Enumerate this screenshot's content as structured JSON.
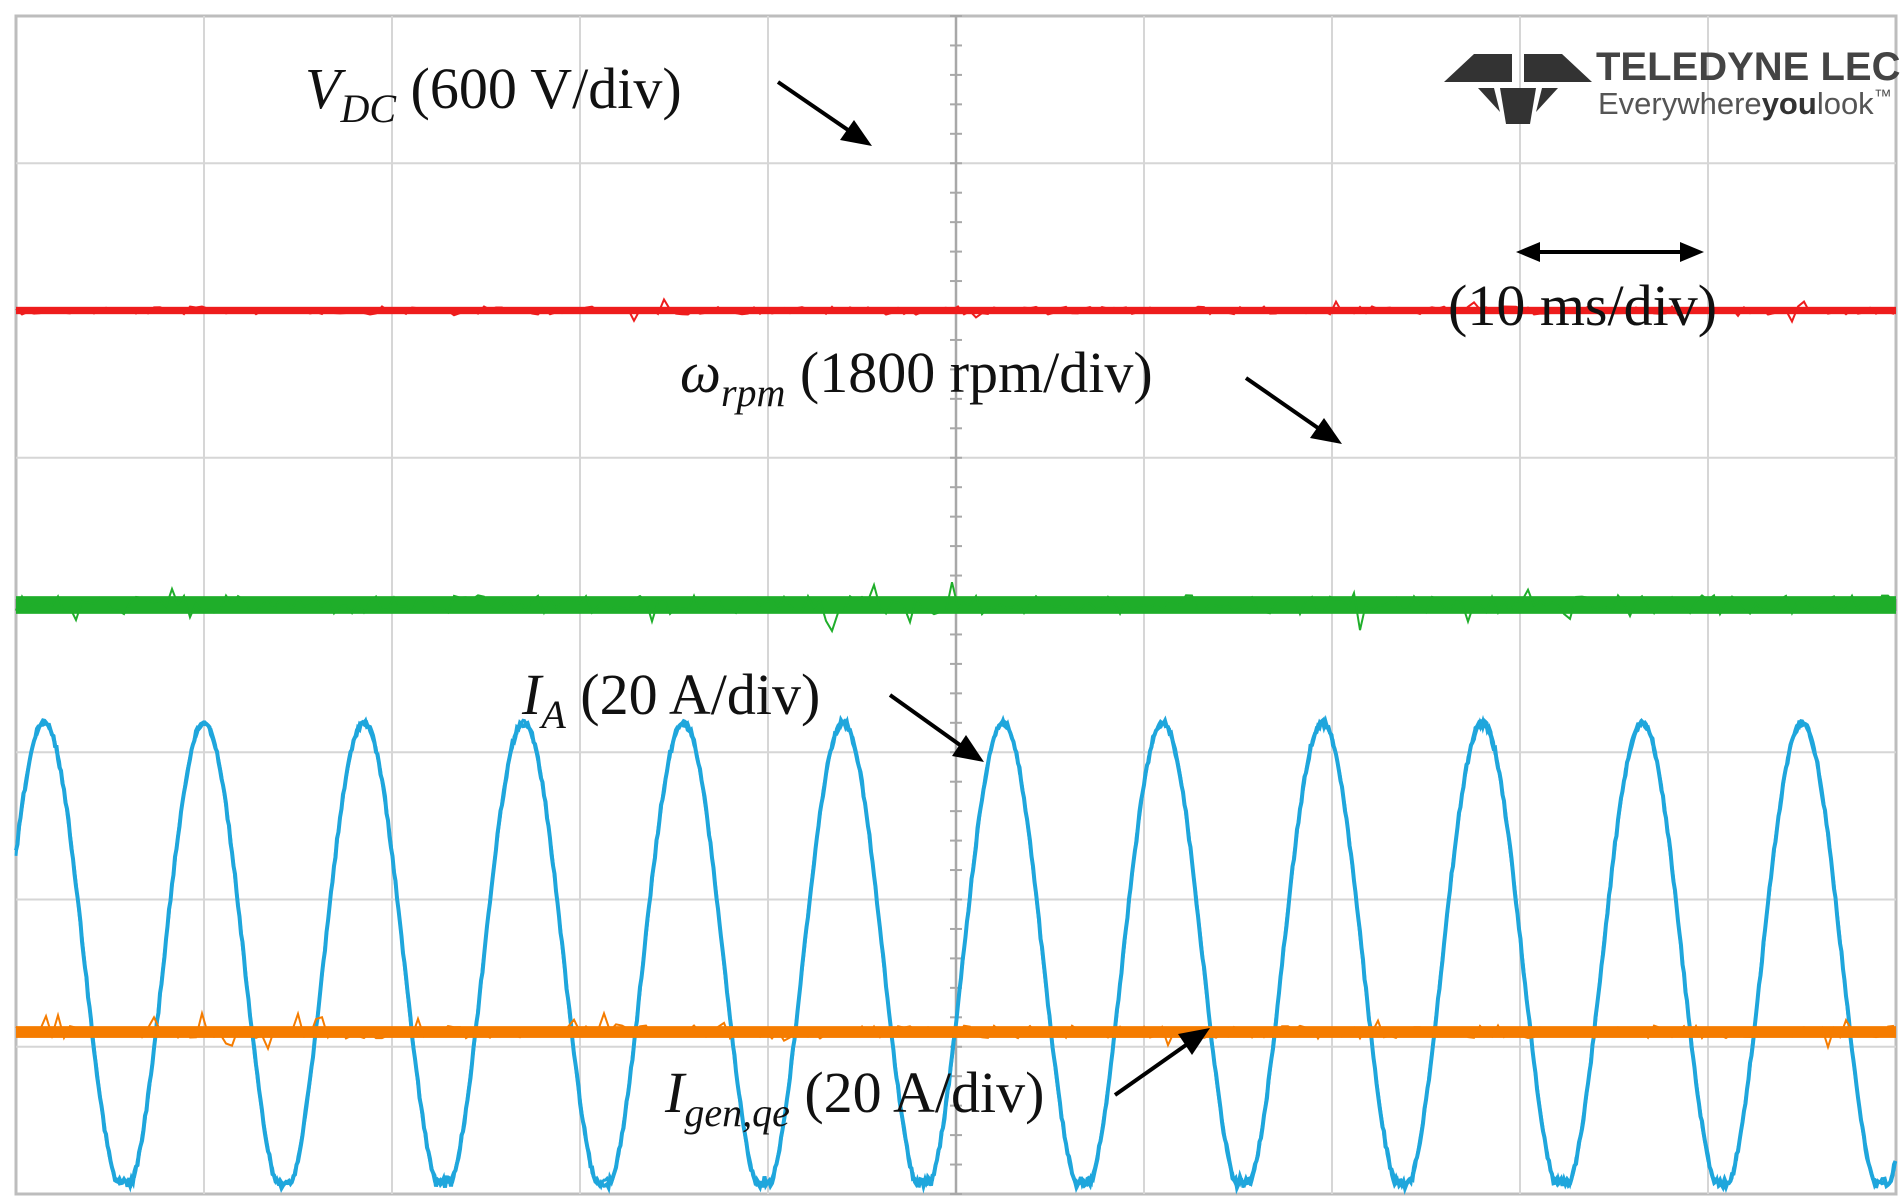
{
  "chart_data": {
    "type": "line",
    "title": "",
    "divisions": {
      "x": 10,
      "y": 8
    },
    "time_base": "(10 ms/div)",
    "grid": true,
    "series": [
      {
        "name": "V_DC",
        "label_main": "V",
        "label_sub": "DC",
        "label_scale": " (600 V/div)",
        "color": "#ee1c1c",
        "waveform": "dc",
        "level_div": 6.0,
        "noise_div": 0.05
      },
      {
        "name": "ω_rpm",
        "label_main": "ω",
        "label_sub": "rpm",
        "label_scale": " (1800 rpm/div)",
        "color": "#1fae2a",
        "waveform": "dc",
        "level_div": 4.0,
        "noise_div": 0.12
      },
      {
        "name": "I_A",
        "label_main": "I",
        "label_sub": "A",
        "label_scale": " (20 A/div)",
        "color": "#1fa6dc",
        "waveform": "sine",
        "center_div": 1.6,
        "amplitude_div": 1.6,
        "period_div": 0.85,
        "phase_div": 0.15,
        "cycles_visible": 12
      },
      {
        "name": "I_gen,qe",
        "label_main": "I",
        "label_sub": "gen,qe",
        "label_scale": " (20 A/div)",
        "color": "#f57c00",
        "waveform": "dc",
        "level_div": 1.1,
        "noise_div": 0.08
      }
    ]
  },
  "brand": {
    "name": "TELEDYNE LECROY",
    "tagline_a": "Everywhere",
    "tagline_b": "you",
    "tagline_c": "look",
    "tm": "™"
  }
}
